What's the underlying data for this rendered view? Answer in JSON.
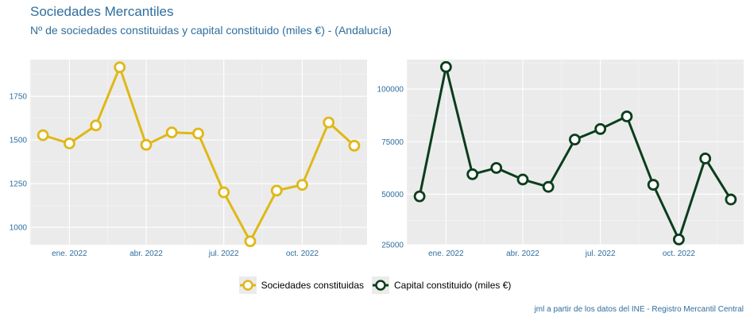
{
  "title": "Sociedades Mercantiles",
  "subtitle": "Nº de sociedades constituidas y capital constituido (miles €) - (Andalucía)",
  "caption": "jml a partir de los datos del INE - Registro Mercantil Central",
  "legend": [
    {
      "label": "Sociedades constituidas",
      "color": "#dfb816"
    },
    {
      "label": "Capital constituido (miles €)",
      "color": "#0b3d1c"
    }
  ],
  "chart_data": [
    {
      "type": "line",
      "series": [
        {
          "name": "Sociedades constituidas",
          "color": "#dfb816",
          "x": [
            "2021-12-01",
            "2022-01-01",
            "2022-02-01",
            "2022-03-01",
            "2022-04-01",
            "2022-05-01",
            "2022-06-01",
            "2022-07-01",
            "2022-08-01",
            "2022-09-01",
            "2022-10-01",
            "2022-11-01",
            "2022-12-01"
          ],
          "values": [
            1527,
            1480,
            1583,
            1916,
            1472,
            1543,
            1537,
            1200,
            920,
            1210,
            1243,
            1600,
            1467
          ]
        }
      ],
      "ylim": [
        900,
        1960
      ],
      "yticks": [
        1000,
        1250,
        1500,
        1750
      ],
      "xticks": [
        {
          "date": "2022-01-01",
          "label": "ene. 2022"
        },
        {
          "date": "2022-04-01",
          "label": "abr. 2022"
        },
        {
          "date": "2022-07-01",
          "label": "jul. 2022"
        },
        {
          "date": "2022-10-01",
          "label": "oct. 2022"
        }
      ],
      "xlim": [
        "2021-11-16",
        "2022-12-16"
      ],
      "grid": true
    },
    {
      "type": "line",
      "series": [
        {
          "name": "Capital constituido (miles €)",
          "color": "#0b3d1c",
          "x": [
            "2021-12-01",
            "2022-01-01",
            "2022-02-01",
            "2022-03-01",
            "2022-04-01",
            "2022-05-01",
            "2022-06-01",
            "2022-07-01",
            "2022-08-01",
            "2022-09-01",
            "2022-10-01",
            "2022-11-01",
            "2022-12-01"
          ],
          "values": [
            49000,
            110500,
            59500,
            62500,
            57000,
            53500,
            76000,
            81000,
            87000,
            54500,
            28500,
            67000,
            47500
          ]
        }
      ],
      "ylim": [
        26000,
        114000
      ],
      "yticks": [
        25000,
        50000,
        75000,
        100000
      ],
      "xticks": [
        {
          "date": "2022-01-01",
          "label": "ene. 2022"
        },
        {
          "date": "2022-04-01",
          "label": "abr. 2022"
        },
        {
          "date": "2022-07-01",
          "label": "jul. 2022"
        },
        {
          "date": "2022-10-01",
          "label": "oct. 2022"
        }
      ],
      "xlim": [
        "2021-11-16",
        "2022-12-16"
      ],
      "grid": true
    }
  ]
}
